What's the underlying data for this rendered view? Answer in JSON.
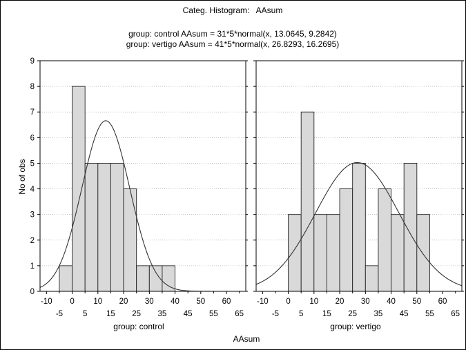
{
  "chart_data": {
    "type": "bar",
    "title": "Categ. Histogram:   AAsum",
    "subtitle_lines": [
      "group: control AAsum = 31*5*normal(x, 13.0645, 9.2842)",
      "group: vertigo AAsum = 41*5*normal(x, 26.8293, 16.2695)"
    ],
    "xlabel": "AAsum",
    "ylabel": "No of obs",
    "ylim": [
      0,
      9
    ],
    "xlim": [
      -12.5,
      67.5
    ],
    "yticks": [
      "0",
      "1",
      "2",
      "3",
      "4",
      "5",
      "6",
      "7",
      "8",
      "9"
    ],
    "xticks_top": [
      "-10",
      "0",
      "10",
      "20",
      "30",
      "40",
      "50",
      "60"
    ],
    "xticks_bottom": [
      "-5",
      "5",
      "15",
      "25",
      "35",
      "45",
      "55",
      "65"
    ],
    "grid": true,
    "bin_width": 5,
    "bar_color": "#d9d9d9",
    "panels": [
      {
        "name": "group: control",
        "bins": [
          {
            "from": -5,
            "to": 0,
            "count": 1
          },
          {
            "from": 0,
            "to": 5,
            "count": 8
          },
          {
            "from": 5,
            "to": 10,
            "count": 5
          },
          {
            "from": 10,
            "to": 15,
            "count": 5
          },
          {
            "from": 15,
            "to": 20,
            "count": 5
          },
          {
            "from": 20,
            "to": 25,
            "count": 4
          },
          {
            "from": 25,
            "to": 30,
            "count": 1
          },
          {
            "from": 30,
            "to": 35,
            "count": 1
          },
          {
            "from": 35,
            "to": 40,
            "count": 1
          }
        ],
        "fit": {
          "n": 31,
          "mean": 13.0645,
          "sd": 9.2842
        }
      },
      {
        "name": "group: vertigo",
        "bins": [
          {
            "from": 0,
            "to": 5,
            "count": 3
          },
          {
            "from": 5,
            "to": 10,
            "count": 7
          },
          {
            "from": 10,
            "to": 15,
            "count": 3
          },
          {
            "from": 15,
            "to": 20,
            "count": 3
          },
          {
            "from": 20,
            "to": 25,
            "count": 4
          },
          {
            "from": 25,
            "to": 30,
            "count": 5
          },
          {
            "from": 30,
            "to": 35,
            "count": 1
          },
          {
            "from": 35,
            "to": 40,
            "count": 4
          },
          {
            "from": 40,
            "to": 45,
            "count": 3
          },
          {
            "from": 45,
            "to": 50,
            "count": 5
          },
          {
            "from": 50,
            "to": 55,
            "count": 3
          }
        ],
        "fit": {
          "n": 41,
          "mean": 26.8293,
          "sd": 16.2695
        }
      }
    ]
  }
}
